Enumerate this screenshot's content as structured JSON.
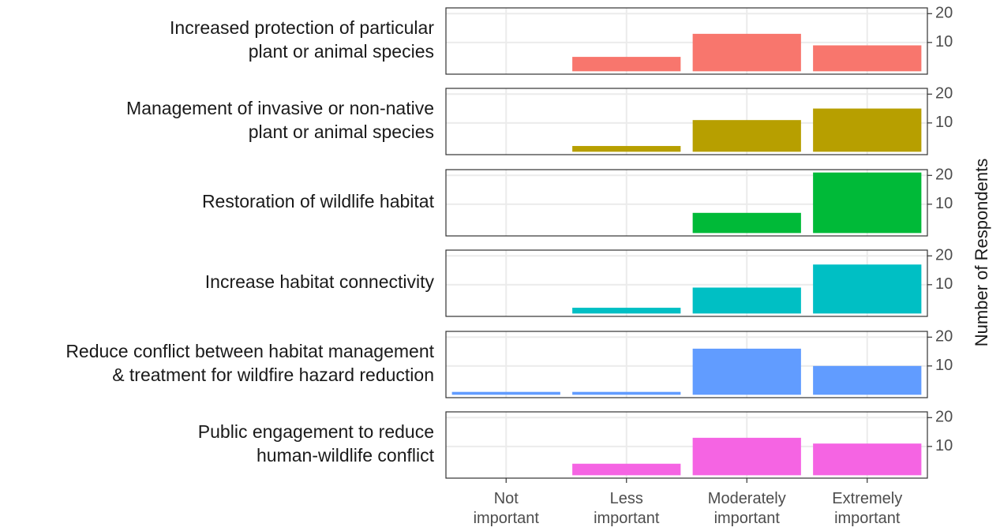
{
  "categories": [
    "Not\nimportant",
    "Less\nimportant",
    "Moderately\nimportant",
    "Extremely\nimportant"
  ],
  "y_label": "Number of Respondents",
  "ylim": [
    -1,
    22
  ],
  "yticks": [
    10,
    20
  ],
  "chart_data": [
    {
      "type": "bar",
      "title": "Increased protection of particular\nplant or animal species",
      "values": [
        null,
        5,
        13,
        9
      ],
      "color": "#F8766D"
    },
    {
      "type": "bar",
      "title": "Management of invasive or non-native\nplant or animal species",
      "values": [
        null,
        2,
        11,
        15
      ],
      "color": "#B79F00"
    },
    {
      "type": "bar",
      "title": "Restoration of wildlife habitat",
      "values": [
        null,
        null,
        7,
        21
      ],
      "color": "#00BA38"
    },
    {
      "type": "bar",
      "title": "Increase habitat connectivity",
      "values": [
        null,
        2,
        9,
        17
      ],
      "color": "#00BFC4"
    },
    {
      "type": "bar",
      "title": "Reduce conflict between habitat management\n& treatment for wildfire hazard reduction",
      "values": [
        1,
        1,
        16,
        10
      ],
      "color": "#619CFF"
    },
    {
      "type": "bar",
      "title": "Public engagement to reduce\nhuman-wildlife conflict",
      "values": [
        null,
        4,
        13,
        11
      ],
      "color": "#F564E3"
    }
  ]
}
